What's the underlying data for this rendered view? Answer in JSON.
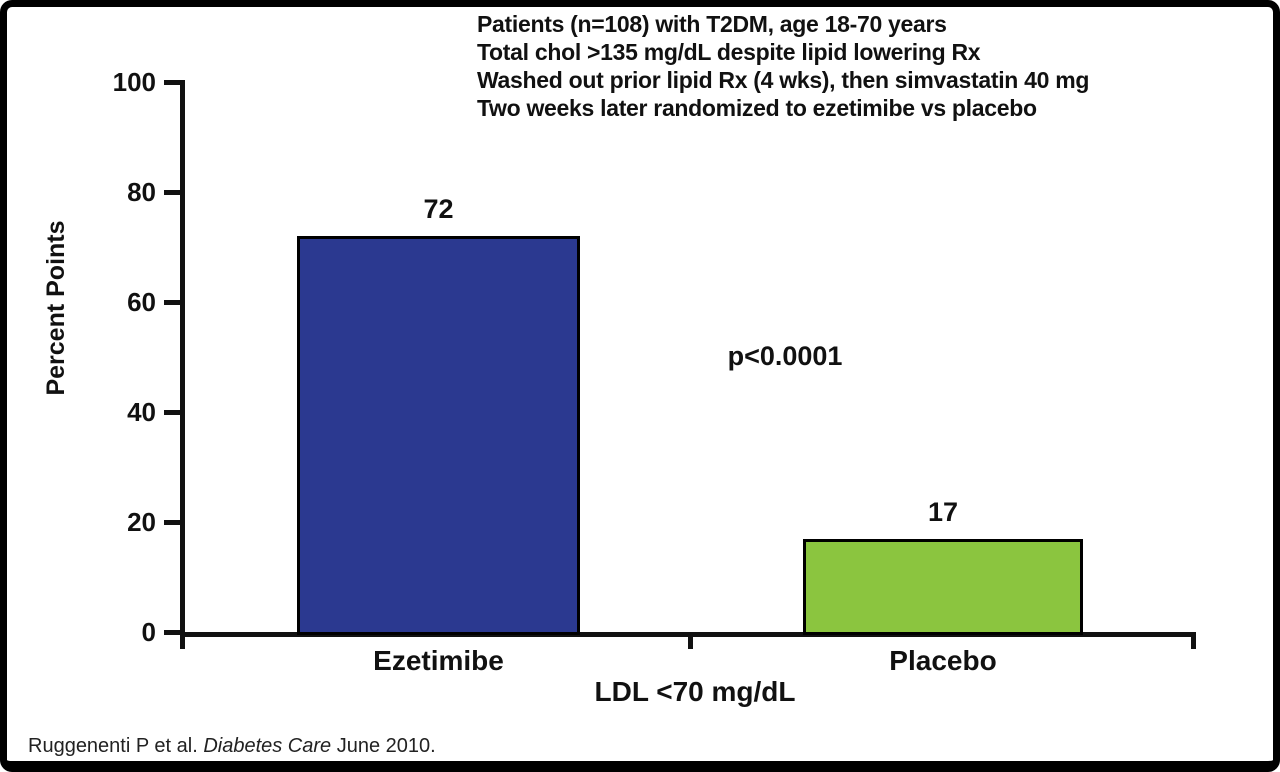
{
  "header": {
    "lines": [
      "Patients (n=108) with T2DM, age 18-70 years",
      "Total chol >135 mg/dL despite lipid lowering Rx",
      "Washed out prior lipid Rx (4 wks), then simvastatin 40 mg",
      "Two weeks later randomized to ezetimibe vs placebo"
    ]
  },
  "chart_data": {
    "type": "bar",
    "categories": [
      "Ezetimibe",
      "Placebo"
    ],
    "values": [
      72,
      17
    ],
    "value_labels": [
      "72",
      "17"
    ],
    "bar_colors": [
      "#2B3990",
      "#8BC53F"
    ],
    "bar_border_color": "#000000",
    "title": "",
    "xlabel": "LDL <70 mg/dL",
    "ylabel": "Percent Points",
    "ylim": [
      0,
      100
    ],
    "yticks": [
      0,
      20,
      40,
      60,
      80,
      100
    ],
    "grid": false,
    "legend": "none",
    "annotation": "p<0.0001",
    "axis_color": "#111111"
  },
  "citation": {
    "prefix": "Ruggenenti P et al. ",
    "journal": "Diabetes Care",
    "suffix": " June 2010."
  }
}
